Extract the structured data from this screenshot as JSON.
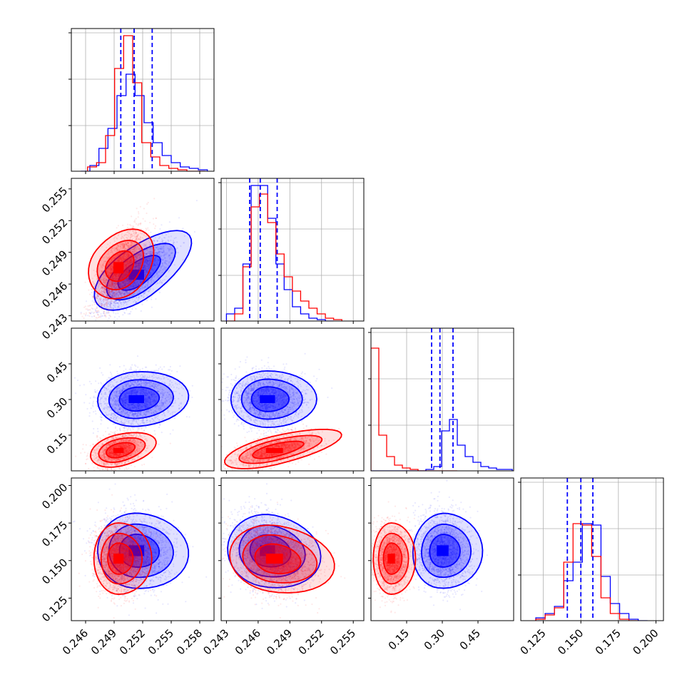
{
  "chart_data": {
    "type": "corner",
    "description_free": true,
    "colors": {
      "series_a": "#ff0000",
      "series_b": "#0000ff",
      "quantile_line": "#0000ff"
    },
    "grid": true,
    "series": [
      {
        "color": "#ff0000"
      },
      {
        "color": "#0000ff"
      }
    ],
    "params": [
      {
        "xrange": [
          0.2445,
          0.2595
        ],
        "ticks": [
          "0.246",
          "0.249",
          "0.252",
          "0.255",
          "0.258"
        ],
        "tick_values": [
          0.246,
          0.249,
          0.252,
          0.255,
          0.258
        ],
        "quantiles_blue": [
          0.2497,
          0.2511,
          0.253
        ],
        "hist_red": [
          0.03,
          0.06,
          0.25,
          0.72,
          0.95,
          0.62,
          0.2,
          0.1,
          0.04,
          0.02,
          0.01,
          0.0,
          0.0
        ],
        "hist_blue": [
          0.0,
          0.04,
          0.16,
          0.3,
          0.53,
          0.68,
          0.53,
          0.34,
          0.2,
          0.11,
          0.06,
          0.03,
          0.02,
          0.01
        ],
        "hist_blue_x0": 0.2455,
        "hist_red_x0": 0.2462,
        "binw": 0.00095
      },
      {
        "xrange": [
          0.2425,
          0.256
        ],
        "ticks": [
          "0.243",
          "0.246",
          "0.249",
          "0.252",
          "0.255"
        ],
        "tick_values": [
          0.243,
          0.246,
          0.249,
          0.252,
          0.255
        ],
        "quantiles_blue": [
          0.2452,
          0.2462,
          0.2478
        ],
        "hist_red": [
          0.0,
          0.05,
          0.38,
          0.8,
          0.89,
          0.69,
          0.47,
          0.31,
          0.21,
          0.14,
          0.09,
          0.05,
          0.02,
          0.01
        ],
        "hist_blue": [
          0.05,
          0.09,
          0.4,
          0.95,
          0.95,
          0.72,
          0.4,
          0.22,
          0.1,
          0.05,
          0.02,
          0.01,
          0.0
        ],
        "hist_blue_x0": 0.243,
        "hist_red_x0": 0.243,
        "binw": 0.00078
      },
      {
        "xrange": [
          0.0,
          0.6
        ],
        "ticks": [
          "0.15",
          "0.30",
          "0.45"
        ],
        "tick_values": [
          0.15,
          0.3,
          0.45
        ],
        "quantiles_blue": [
          0.255,
          0.29,
          0.345
        ],
        "hist_red": [
          0.86,
          0.25,
          0.1,
          0.04,
          0.02,
          0.01,
          0.0,
          0.0,
          0.0,
          0.0,
          0.0
        ],
        "hist_blue": [
          0.0,
          0.0,
          0.0,
          0.0,
          0.0,
          0.0,
          0.0,
          0.01,
          0.03,
          0.28,
          0.36,
          0.18,
          0.1,
          0.06,
          0.03,
          0.02,
          0.01,
          0.01
        ],
        "hist_blue_x0": 0.0,
        "hist_red_x0": 0.0,
        "binw": 0.033
      },
      {
        "xrange": [
          0.11,
          0.205
        ],
        "ticks": [
          "0.125",
          "0.150",
          "0.175",
          "0.200"
        ],
        "tick_values": [
          0.125,
          0.15,
          0.175,
          0.2
        ],
        "quantiles_blue": [
          0.141,
          0.15,
          0.158
        ],
        "hist_red": [
          0.01,
          0.04,
          0.09,
          0.41,
          0.68,
          0.67,
          0.45,
          0.16,
          0.05,
          0.01,
          0.0
        ],
        "hist_blue": [
          0.02,
          0.05,
          0.1,
          0.28,
          0.41,
          0.68,
          0.67,
          0.31,
          0.12,
          0.05,
          0.01,
          0.0
        ],
        "hist_blue_x0": 0.12,
        "hist_red_x0": 0.12,
        "binw": 0.0062
      }
    ],
    "y_tick_labels": {
      "row1": [
        "0.243",
        "0.246",
        "0.249",
        "0.252",
        "0.255"
      ],
      "row2": [
        "0.15",
        "0.30",
        "0.45"
      ],
      "row3": [
        "0.125",
        "0.150",
        "0.175",
        "0.200"
      ]
    },
    "y_tick_values": {
      "row1": [
        0.243,
        0.246,
        0.249,
        0.252,
        0.255
      ],
      "row2": [
        0.15,
        0.3,
        0.45
      ],
      "row3": [
        0.125,
        0.15,
        0.175,
        0.2
      ]
    },
    "modes": {
      "red": [
        0.2491,
        0.247,
        0.075,
        0.148
      ],
      "blue": [
        0.2508,
        0.2464,
        0.285,
        0.153
      ]
    },
    "spread": {
      "red": [
        0.0012,
        0.0018,
        0.035,
        0.011
      ],
      "blue": [
        0.0018,
        0.0016,
        0.055,
        0.012
      ]
    },
    "correlation": {
      "red": {
        "0-1": 0.75,
        "0-2": 0.35,
        "1-2": 0.55,
        "0-3": 0.0,
        "1-3": -0.2,
        "2-3": 0.0
      },
      "blue": {
        "0-1": 0.75,
        "0-2": 0.1,
        "1-2": 0.0,
        "0-3": -0.1,
        "1-3": -0.2,
        "2-3": -0.1
      }
    }
  }
}
